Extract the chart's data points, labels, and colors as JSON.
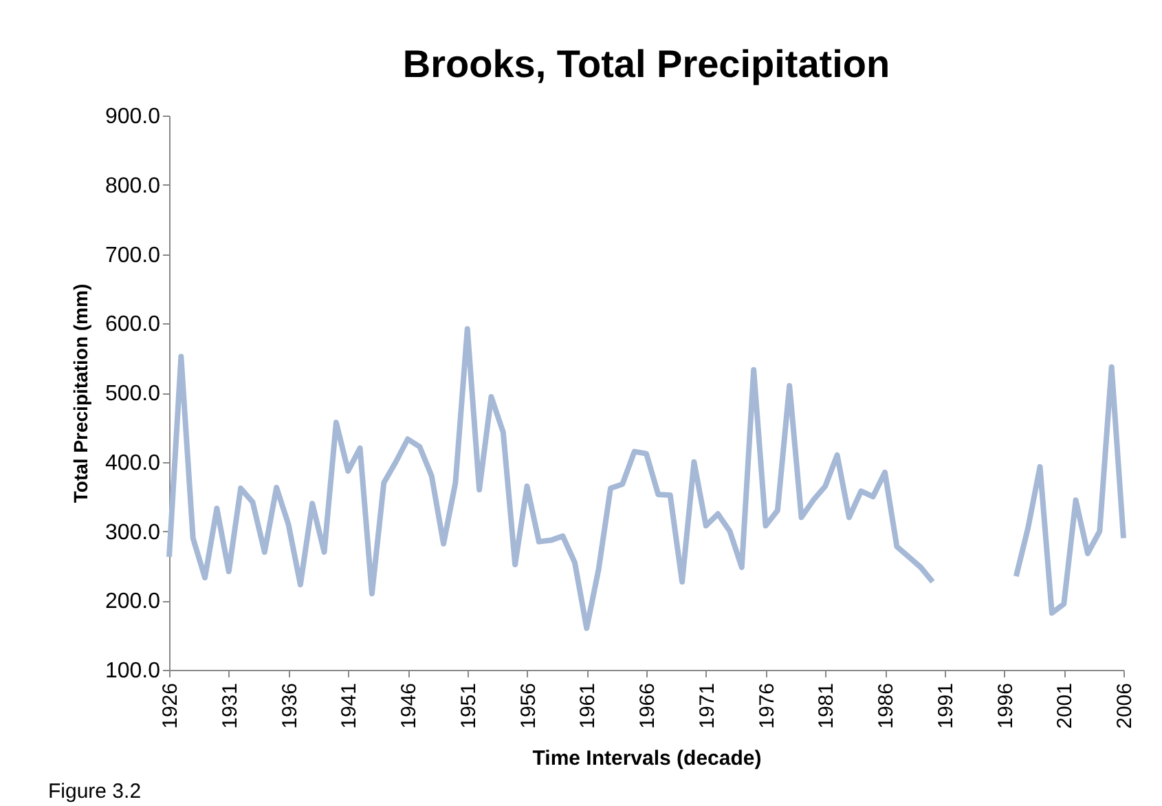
{
  "chart_data": {
    "type": "line",
    "title": "Brooks, Total Precipitation",
    "xlabel": "Time Intervals (decade)",
    "ylabel": "Total Precipitation (mm)",
    "x": [
      1926,
      1927,
      1928,
      1929,
      1930,
      1931,
      1932,
      1933,
      1934,
      1935,
      1936,
      1937,
      1938,
      1939,
      1940,
      1941,
      1942,
      1943,
      1944,
      1945,
      1946,
      1947,
      1948,
      1949,
      1950,
      1951,
      1952,
      1953,
      1954,
      1955,
      1956,
      1957,
      1958,
      1959,
      1960,
      1961,
      1962,
      1963,
      1964,
      1965,
      1966,
      1967,
      1968,
      1969,
      1970,
      1971,
      1972,
      1973,
      1974,
      1975,
      1976,
      1977,
      1978,
      1979,
      1980,
      1981,
      1982,
      1983,
      1984,
      1985,
      1986,
      1987,
      1988,
      1989,
      1990,
      1991,
      1992,
      1993,
      1994,
      1995,
      1996,
      1997,
      1998,
      1999,
      2000,
      2001,
      2002,
      2003,
      2004,
      2005,
      2006
    ],
    "series": [
      {
        "color": "#a5b8d6",
        "values": [
          263,
          552,
          290,
          233,
          333,
          242,
          362,
          342,
          270,
          363,
          310,
          223,
          340,
          270,
          457,
          387,
          420,
          210,
          370,
          400,
          433,
          422,
          380,
          282,
          370,
          592,
          360,
          494,
          443,
          252,
          365,
          285,
          287,
          293,
          255,
          160,
          245,
          362,
          368,
          415,
          412,
          353,
          352,
          227,
          400,
          308,
          325,
          300,
          248,
          533,
          308,
          330,
          510,
          320,
          345,
          365,
          410,
          320,
          358,
          350,
          385,
          278,
          263,
          248,
          227,
          null,
          null,
          null,
          null,
          null,
          null,
          235,
          305,
          393,
          182,
          195,
          345,
          268,
          300,
          537,
          290
        ]
      }
    ],
    "xlim": [
      1926,
      2006
    ],
    "xticks": [
      1926,
      1931,
      1936,
      1941,
      1946,
      1951,
      1956,
      1961,
      1966,
      1971,
      1976,
      1981,
      1986,
      1991,
      1996,
      2001,
      2006
    ],
    "ylim": [
      100,
      900
    ],
    "yticks": [
      {
        "value": 100,
        "label": "100.0"
      },
      {
        "value": 200,
        "label": "200.0"
      },
      {
        "value": 300,
        "label": "300.0"
      },
      {
        "value": 400,
        "label": "400.0"
      },
      {
        "value": 500,
        "label": "500.0"
      },
      {
        "value": 600,
        "label": "600.0"
      },
      {
        "value": 700,
        "label": "700.0"
      },
      {
        "value": 800,
        "label": "800.0"
      },
      {
        "value": 900,
        "label": "900.0"
      }
    ],
    "grid": false,
    "marker": "none",
    "line_style": "solid",
    "annotations": [
      "Figure 3.2"
    ]
  }
}
